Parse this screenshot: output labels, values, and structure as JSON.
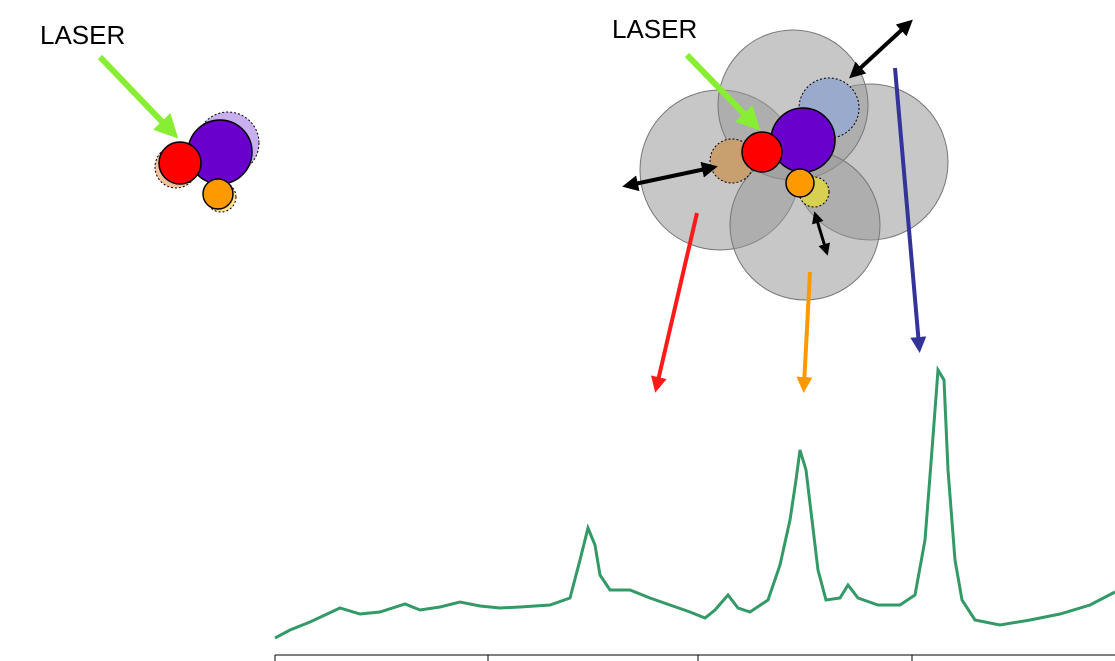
{
  "labels": {
    "left_laser": "LASER",
    "right_laser": "LASER"
  }
}
